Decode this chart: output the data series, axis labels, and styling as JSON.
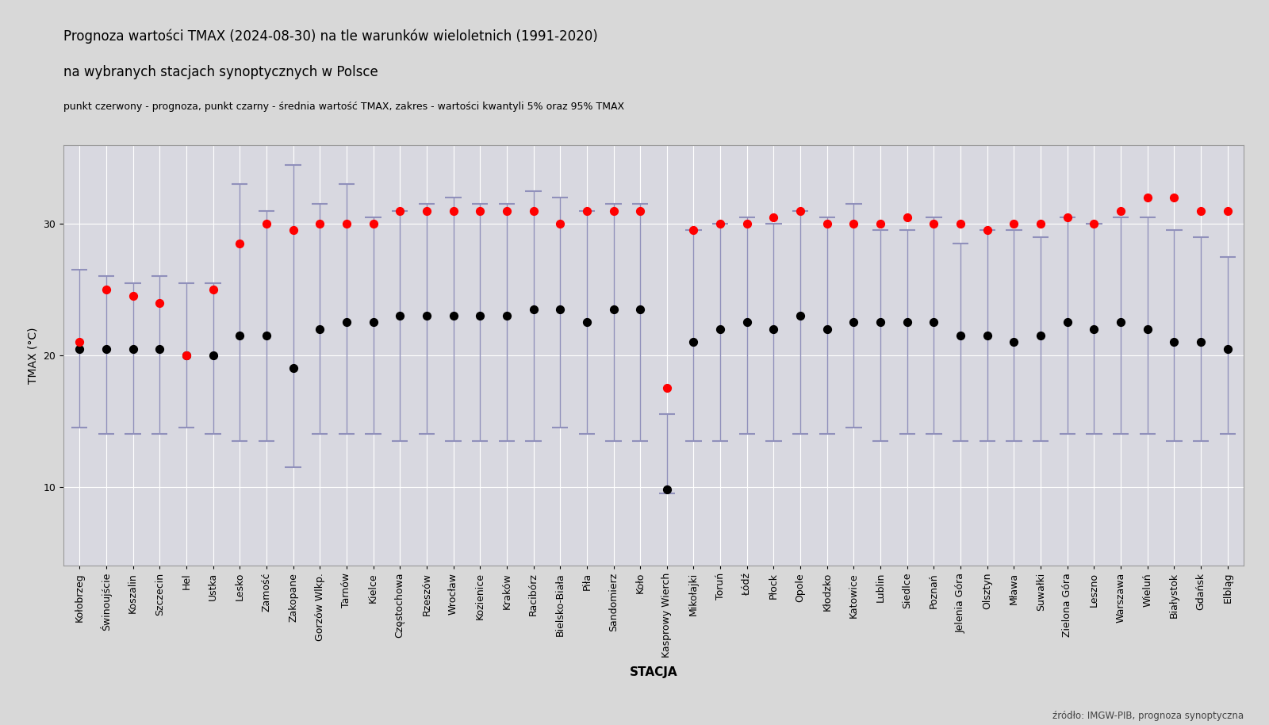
{
  "title_line1": "Prognoza wartości TMAX (2024-08-30) na tle warunków wieloletnich (1991-2020)",
  "title_line2": "na wybranych stacjach synoptycznych w Polsce",
  "subtitle": "punkt czerwony - prognoza, punkt czarny - średnia wartość TMAX, zakres - wartości kwantyli 5% oraz 95% TMAX",
  "xlabel": "STACJA",
  "ylabel": "TMAX (°C)",
  "source": "źródło: IMGW-PIB, prognoza synoptyczna",
  "stations": [
    "Kołobrzeg",
    "Świnoujście",
    "Koszalin",
    "Szczecin",
    "Hel",
    "Ustka",
    "Lesko",
    "Zamość",
    "Zakopane",
    "Gorzów Wlkp.",
    "Tarnów",
    "Kielce",
    "Częstochowa",
    "Rzeszów",
    "Wrocław",
    "Kozienice",
    "Kraków",
    "Racibórz",
    "Bielsko-Biała",
    "Piła",
    "Sandomierz",
    "Koło",
    "Kasprowy Wierch",
    "Mikołajki",
    "Toruń",
    "Łódź",
    "Płock",
    "Opole",
    "Kłodzko",
    "Katowice",
    "Lublin",
    "Siedlce",
    "Poznań",
    "Jelenia Góra",
    "Olsztyn",
    "Mława",
    "Suwałki",
    "Zielona Góra",
    "Leszno",
    "Warszawa",
    "Wieluń",
    "Białystok",
    "Gdańsk",
    "Elbląg"
  ],
  "forecast": [
    21.0,
    25.0,
    24.5,
    24.0,
    20.0,
    25.0,
    28.5,
    30.0,
    29.5,
    30.0,
    30.0,
    30.0,
    31.0,
    31.0,
    31.0,
    31.0,
    31.0,
    31.0,
    30.0,
    31.0,
    31.0,
    31.0,
    17.5,
    29.5,
    30.0,
    30.0,
    30.5,
    31.0,
    30.0,
    30.0,
    30.0,
    30.5,
    30.0,
    30.0,
    29.5,
    30.0,
    30.0,
    30.5,
    30.0,
    31.0,
    32.0,
    32.0,
    31.0,
    31.0
  ],
  "mean": [
    20.5,
    20.5,
    20.5,
    20.5,
    20.0,
    20.0,
    21.5,
    21.5,
    19.0,
    22.0,
    22.5,
    22.5,
    23.0,
    23.0,
    23.0,
    23.0,
    23.0,
    23.5,
    23.5,
    22.5,
    23.5,
    23.5,
    9.8,
    21.0,
    22.0,
    22.5,
    22.0,
    23.0,
    22.0,
    22.5,
    22.5,
    22.5,
    22.5,
    21.5,
    21.5,
    21.0,
    21.5,
    22.5,
    22.0,
    22.5,
    22.0,
    21.0,
    21.0,
    20.5
  ],
  "q05": [
    14.5,
    14.0,
    14.0,
    14.0,
    14.5,
    14.0,
    13.5,
    13.5,
    11.5,
    14.0,
    14.0,
    14.0,
    13.5,
    14.0,
    13.5,
    13.5,
    13.5,
    13.5,
    14.5,
    14.0,
    13.5,
    13.5,
    9.5,
    13.5,
    13.5,
    14.0,
    13.5,
    14.0,
    14.0,
    14.5,
    13.5,
    14.0,
    14.0,
    13.5,
    13.5,
    13.5,
    13.5,
    14.0,
    14.0,
    14.0,
    14.0,
    13.5,
    13.5,
    14.0
  ],
  "q95": [
    26.5,
    26.0,
    25.5,
    26.0,
    25.5,
    25.5,
    33.0,
    31.0,
    34.5,
    31.5,
    33.0,
    30.5,
    31.0,
    31.5,
    32.0,
    31.5,
    31.5,
    32.5,
    32.0,
    31.0,
    31.5,
    31.5,
    15.5,
    29.5,
    30.0,
    30.5,
    30.0,
    31.0,
    30.5,
    31.5,
    29.5,
    29.5,
    30.5,
    28.5,
    29.5,
    29.5,
    29.0,
    30.5,
    30.0,
    30.5,
    30.5,
    29.5,
    29.0,
    27.5
  ],
  "forecast_color": "#ff0000",
  "mean_color": "#000000",
  "errorbar_color": "#9090bb",
  "bg_color": "#d8d8d8",
  "plot_bg_color": "#d8d8e0",
  "grid_color": "#ffffff",
  "ylim": [
    4,
    36
  ],
  "yticks": [
    10,
    20,
    30
  ],
  "title_fontsize": 12,
  "subtitle_fontsize": 9,
  "tick_fontsize": 9
}
